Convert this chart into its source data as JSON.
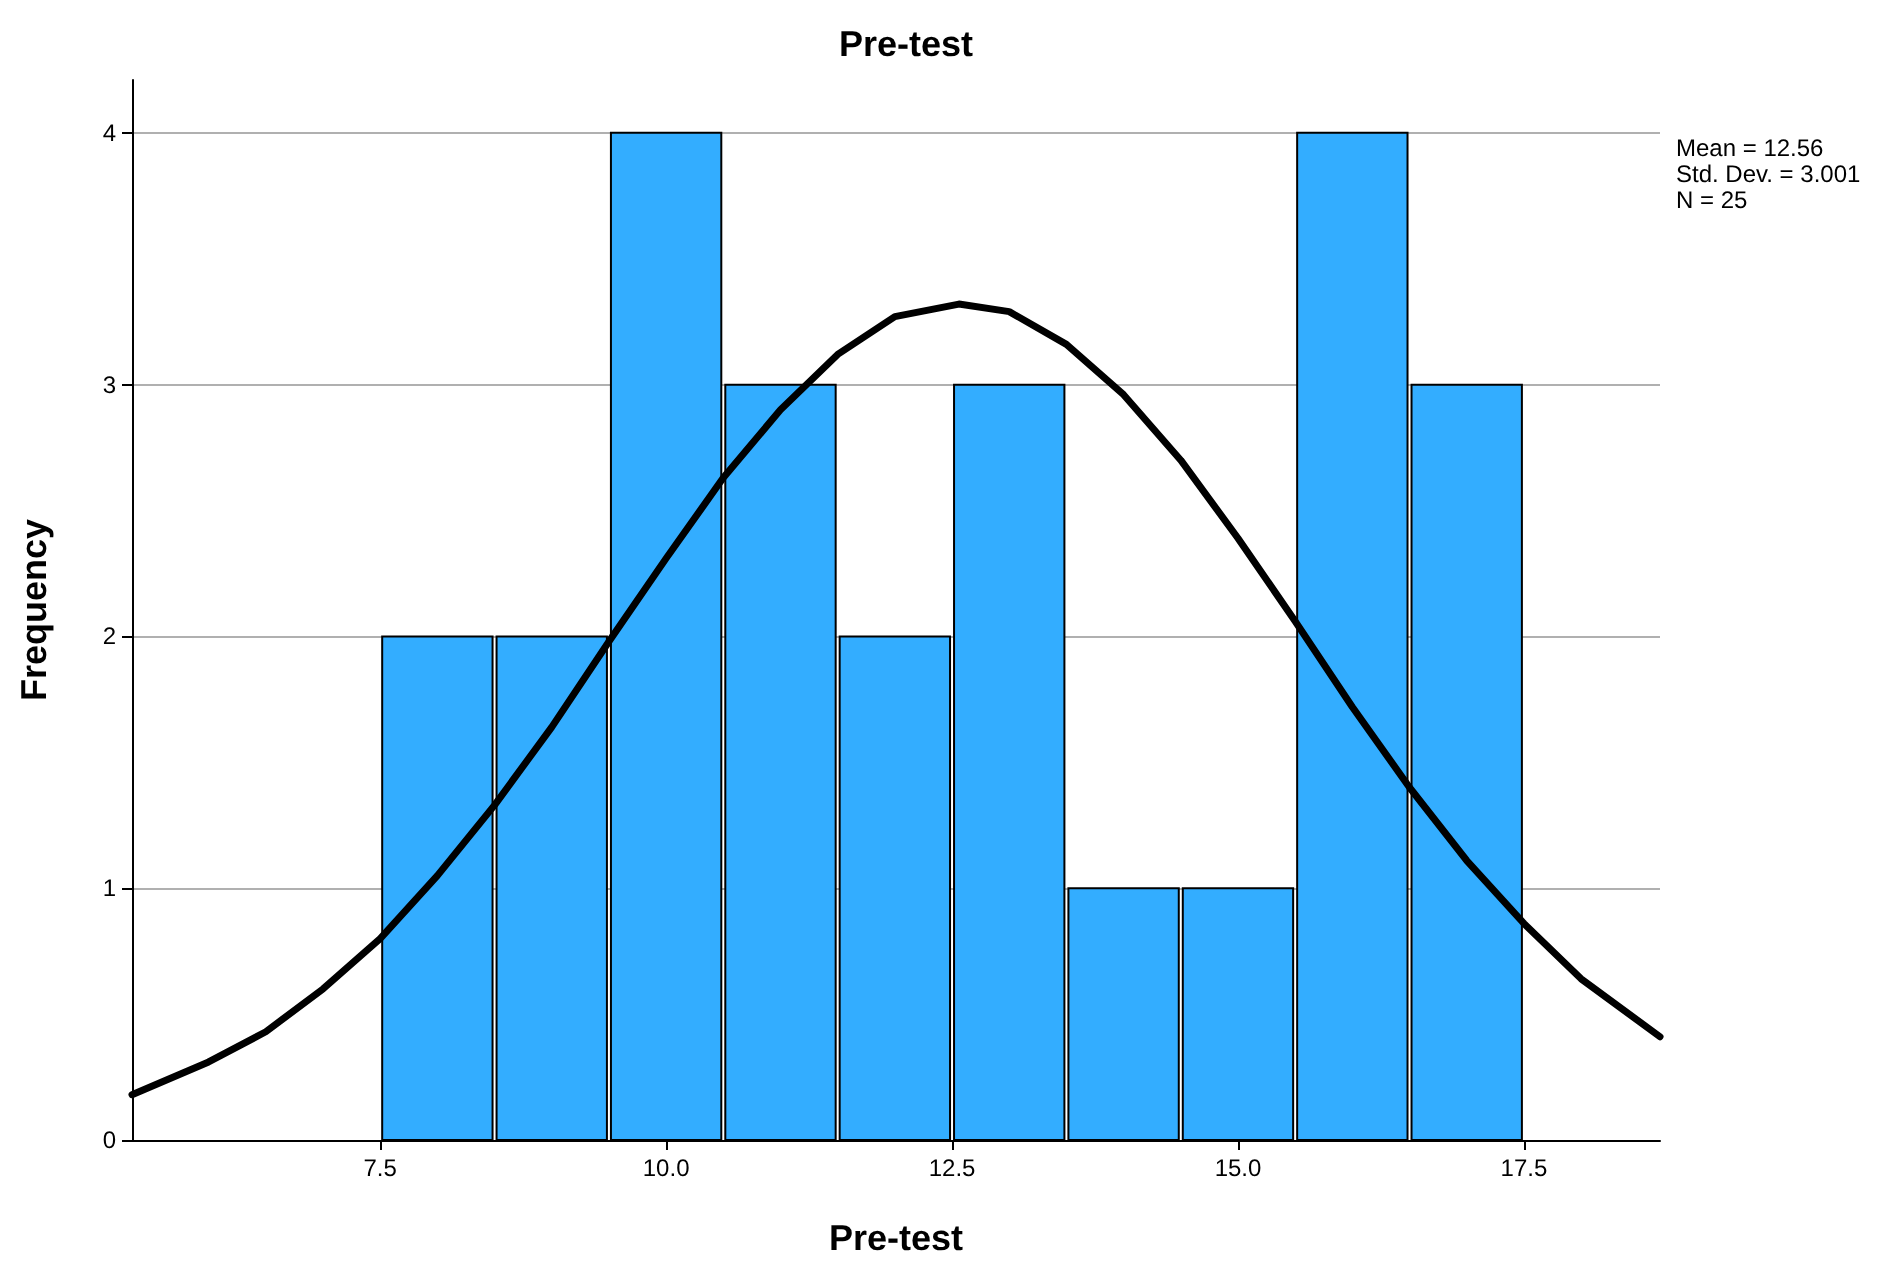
{
  "chart_data": {
    "type": "histogram",
    "title": "Pre-test",
    "xlabel": "Pre-test",
    "ylabel": "Frequency",
    "bins": [
      7.5,
      8.5,
      9.5,
      10.5,
      11.5,
      12.5,
      13.5,
      14.5,
      15.5,
      16.5,
      17.5
    ],
    "values": [
      2,
      2,
      4,
      3,
      2,
      3,
      1,
      1,
      4,
      3
    ],
    "color": "#33adff",
    "series": [
      {
        "type": "line",
        "color": "#000000",
        "x": [
          5.33,
          6,
          6.5,
          7,
          7.5,
          8,
          8.5,
          9,
          9.5,
          10,
          10.5,
          11,
          11.5,
          12,
          12.56,
          13,
          13.5,
          14,
          14.5,
          15,
          15.5,
          16,
          16.5,
          17,
          17.5,
          18,
          18.69
        ],
        "values": [
          0.18,
          0.31,
          0.43,
          0.6,
          0.8,
          1.05,
          1.33,
          1.64,
          1.98,
          2.31,
          2.63,
          2.9,
          3.12,
          3.27,
          3.32,
          3.29,
          3.16,
          2.96,
          2.7,
          2.39,
          2.06,
          1.72,
          1.4,
          1.11,
          0.86,
          0.64,
          0.41
        ]
      }
    ],
    "xlim": [
      5.33,
      18.69
    ],
    "xticks": [
      7.5,
      {
        "value": 10,
        "label": "10.0"
      },
      12.5,
      {
        "value": 15,
        "label": "15.0"
      },
      17.5
    ],
    "ylim": [
      0,
      4.21
    ],
    "yticks": [
      0,
      1,
      2,
      3,
      4
    ],
    "grid": "y",
    "marker": "none",
    "line_style": "solid",
    "annotations": [
      "Mean = 12.56",
      "Std. Dev. = 3.001",
      "N = 25"
    ]
  }
}
